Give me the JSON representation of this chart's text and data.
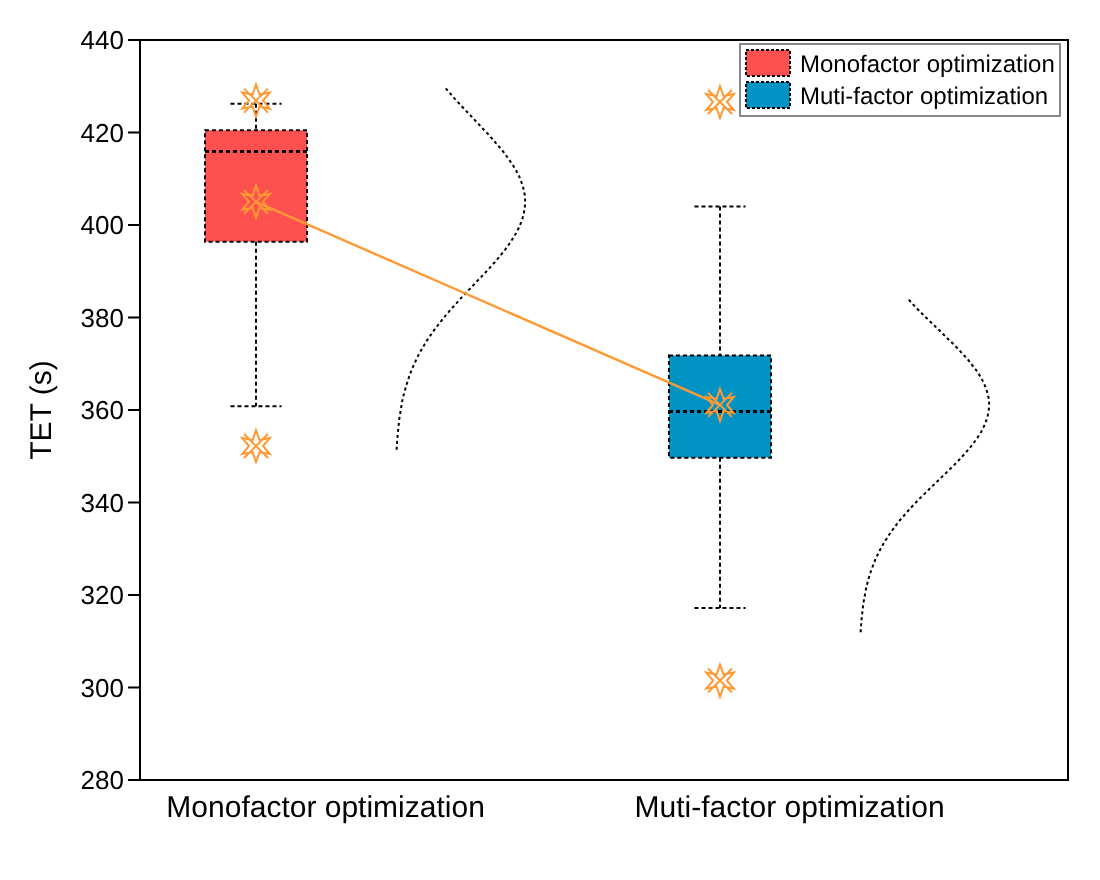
{
  "chart_data": {
    "type": "box",
    "ylabel": "TET (s)",
    "categories": [
      "Monofactor optimization",
      "Muti-factor optimization"
    ],
    "ylim": [
      280,
      440
    ],
    "yticks": [
      280,
      300,
      320,
      340,
      360,
      380,
      400,
      420,
      440
    ],
    "legend": "top right",
    "series": [
      {
        "name": "Monofactor optimization",
        "color": "#ff5050",
        "boxes": [
          {
            "low": 360.8,
            "q1": 396.4,
            "median": 415.9,
            "q3": 420.5,
            "high": 426.2,
            "mean": 405,
            "outliers": [
              426.9,
              352.2
            ]
          },
          null
        ]
      },
      {
        "name": "Muti-factor optimization",
        "color": "#0093c4",
        "boxes": [
          null,
          {
            "low": 317.2,
            "q1": 349.7,
            "median": 359.7,
            "q3": 371.8,
            "high": 404,
            "mean": 361.1,
            "outliers": [
              426.6,
              301.5
            ]
          }
        ]
      },
      {
        "type": "line",
        "x": [
          "Monofactor optimization",
          "Muti-factor optimization"
        ],
        "values": [
          405,
          361.1
        ],
        "color": "#ff9933"
      }
    ]
  }
}
